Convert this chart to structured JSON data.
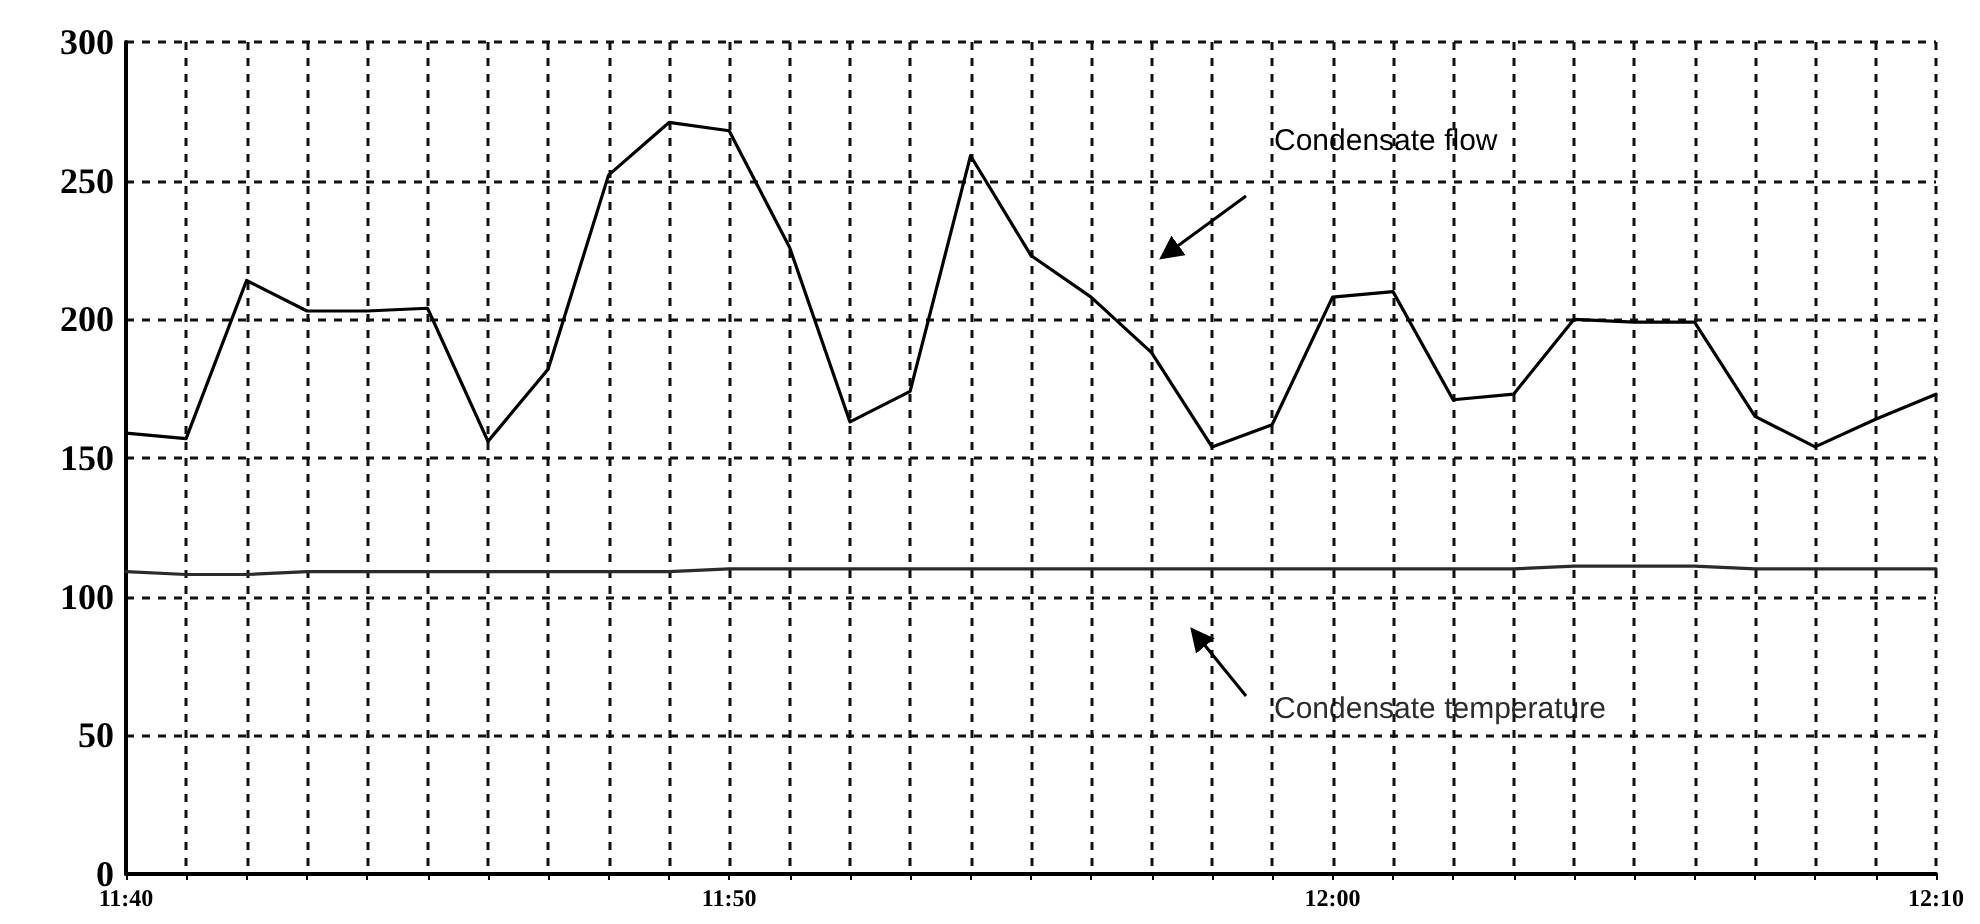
{
  "chart_data": {
    "type": "line",
    "x": [
      11.6667,
      11.6833,
      11.7,
      11.7167,
      11.7333,
      11.75,
      11.7667,
      11.7833,
      11.8,
      11.8167,
      11.8333,
      11.85,
      11.8667,
      11.8833,
      11.9,
      11.9167,
      11.9333,
      11.95,
      11.9667,
      11.9833,
      12,
      12.0167,
      12.0333,
      12.05,
      12.0667,
      12.0833,
      12.1,
      12.1167,
      12.1333,
      12.15,
      12.1667
    ],
    "series": [
      {
        "name": "Condensate flow",
        "color": "#000000",
        "values": [
          159,
          157,
          214,
          203,
          203,
          204,
          156,
          182,
          252,
          271,
          268,
          226,
          163,
          174,
          259,
          223,
          208,
          188,
          154,
          162,
          208,
          210,
          171,
          173,
          200,
          199,
          199,
          165,
          154,
          164,
          173
        ]
      },
      {
        "name": "Condensate temperature",
        "color": "#2b2b2b",
        "values": [
          109,
          108,
          108,
          109,
          109,
          109,
          109,
          109,
          109,
          109,
          110,
          110,
          110,
          110,
          110,
          110,
          110,
          110,
          110,
          110,
          110,
          110,
          110,
          110,
          111,
          111,
          111,
          110,
          110,
          110,
          110
        ]
      }
    ],
    "xlim": [
      11.6667,
      12.1667
    ],
    "xticks": [
      {
        "value": 11.6667,
        "label": "11:40"
      },
      {
        "value": 11.6833,
        "label": null
      },
      {
        "value": 11.7,
        "label": null
      },
      {
        "value": 11.7167,
        "label": null
      },
      {
        "value": 11.7333,
        "label": null
      },
      {
        "value": 11.75,
        "label": null
      },
      {
        "value": 11.7667,
        "label": null
      },
      {
        "value": 11.7833,
        "label": null
      },
      {
        "value": 11.8,
        "label": null
      },
      {
        "value": 11.8167,
        "label": null
      },
      {
        "value": 11.8333,
        "label": "11:50"
      },
      {
        "value": 11.85,
        "label": null
      },
      {
        "value": 11.8667,
        "label": null
      },
      {
        "value": 11.8833,
        "label": null
      },
      {
        "value": 11.9,
        "label": null
      },
      {
        "value": 11.9167,
        "label": null
      },
      {
        "value": 11.9333,
        "label": null
      },
      {
        "value": 11.95,
        "label": null
      },
      {
        "value": 11.9667,
        "label": null
      },
      {
        "value": 11.9833,
        "label": null
      },
      {
        "value": 12,
        "label": "12:00"
      },
      {
        "value": 12.0167,
        "label": null
      },
      {
        "value": 12.0333,
        "label": null
      },
      {
        "value": 12.05,
        "label": null
      },
      {
        "value": 12.0667,
        "label": null
      },
      {
        "value": 12.0833,
        "label": null
      },
      {
        "value": 12.1,
        "label": null
      },
      {
        "value": 12.1167,
        "label": null
      },
      {
        "value": 12.1333,
        "label": null
      },
      {
        "value": 12.15,
        "label": null
      },
      {
        "value": 12.1667,
        "label": "12:10"
      }
    ],
    "ylim": [
      0,
      300
    ],
    "yticks": [
      0,
      50,
      100,
      150,
      200,
      250,
      300
    ],
    "grid": true,
    "legend": false,
    "marker": "none",
    "line_style": "solid"
  }
}
